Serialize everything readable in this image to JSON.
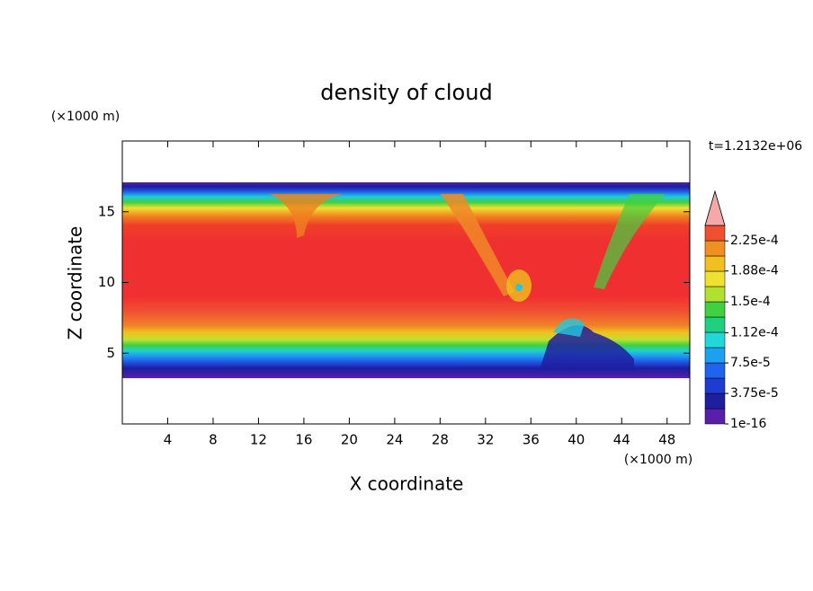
{
  "chart_data": {
    "type": "contour",
    "title": "density of cloud",
    "x_label": "X coordinate",
    "y_label": "Z coordinate",
    "x_unit": "(×1000 m)",
    "y_unit": "(×1000 m)",
    "time_label": "t=1.2132e+06",
    "xlim": [
      0,
      50
    ],
    "xticks": [
      4,
      8,
      12,
      16,
      20,
      24,
      28,
      32,
      36,
      40,
      44,
      48
    ],
    "ylim": [
      0,
      20
    ],
    "yticks": [
      5,
      10,
      15
    ],
    "colorbar": {
      "clim": [
        1e-16,
        0.000244
      ],
      "colors": [
        "#5a1fa8",
        "#1e1ea0",
        "#1f3cd2",
        "#1f64ee",
        "#1ea0f0",
        "#20d8d8",
        "#20d080",
        "#40d040",
        "#b0e030",
        "#f0e030",
        "#f0c020",
        "#f09020",
        "#f05030"
      ],
      "extend_color": "#f4a8a8",
      "ticks": [
        {
          "value": 1e-16,
          "label": "1e-16"
        },
        {
          "value": 3.75e-05,
          "label": "3.75e-5"
        },
        {
          "value": 7.5e-05,
          "label": "7.5e-5"
        },
        {
          "value": 0.000112,
          "label": "1.12e-4"
        },
        {
          "value": 0.00015,
          "label": "1.5e-4"
        },
        {
          "value": 0.000188,
          "label": "1.88e-4"
        },
        {
          "value": 0.000225,
          "label": "2.25e-4"
        }
      ]
    }
  }
}
